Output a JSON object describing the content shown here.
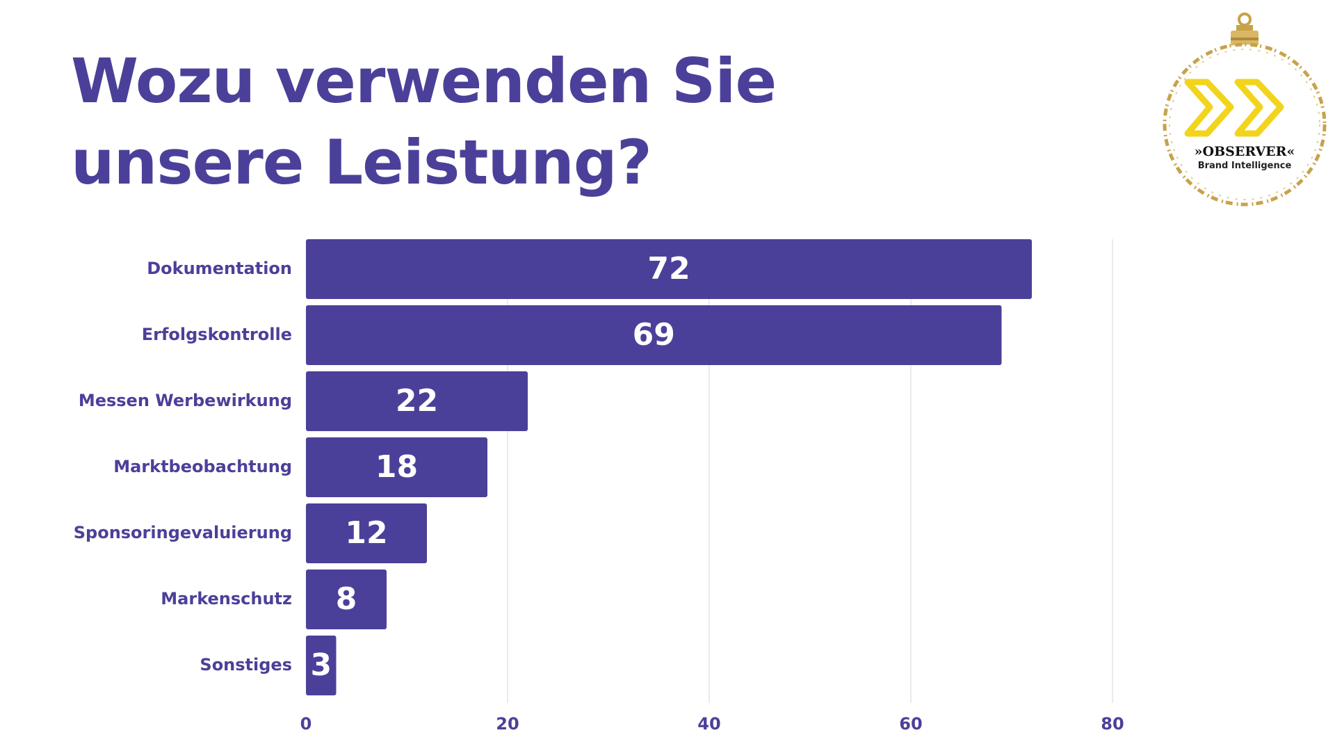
{
  "page": {
    "title": "Wozu verwenden Sie unsere Leistung?"
  },
  "logo": {
    "name": "»OBSERVER«",
    "tagline": "Brand Intelligence"
  },
  "colors": {
    "bar": "#4b4099",
    "text": "#4b4099",
    "grid": "#e3e3ee",
    "value_label": "#ffffff",
    "logo_yellow": "#f2d41c",
    "logo_gold": "#c8a24a"
  },
  "chart_data": {
    "type": "bar",
    "orientation": "horizontal",
    "categories": [
      "Dokumentation",
      "Erfolgskontrolle",
      "Messen Werbewirkung",
      "Marktbeobachtung",
      "Sponsoringevaluierung",
      "Markenschutz",
      "Sonstiges"
    ],
    "values": [
      72,
      69,
      22,
      18,
      12,
      8,
      3
    ],
    "data_labels": [
      "72",
      "69",
      "22",
      "18",
      "12",
      "8",
      "3"
    ],
    "xticks": [
      0,
      20,
      40,
      60,
      80
    ],
    "xtick_labels": [
      "0",
      "20",
      "40",
      "60",
      "80"
    ],
    "xlim": [
      0,
      80
    ],
    "grid": true,
    "legend": "none"
  }
}
